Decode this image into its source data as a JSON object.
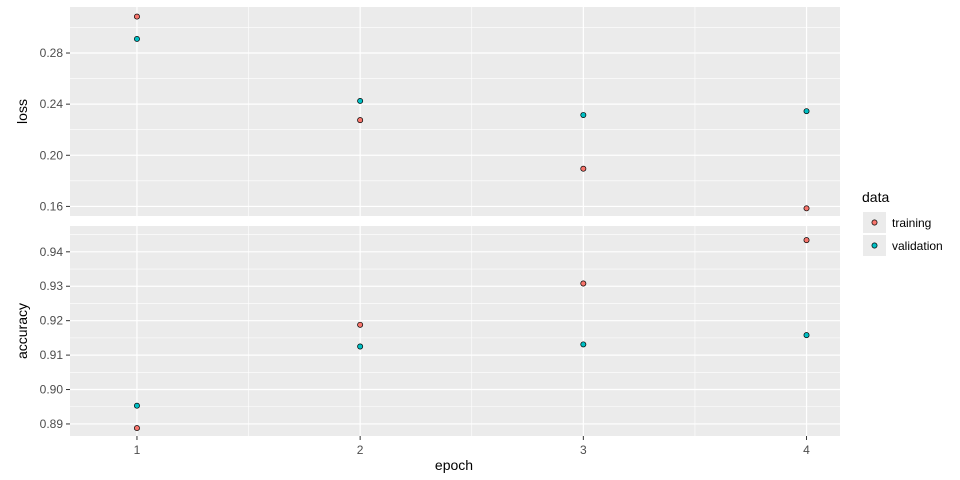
{
  "chart_data": {
    "type": "scatter",
    "xlabel": "epoch",
    "x_ticks": [
      1,
      2,
      3,
      4
    ],
    "xlim": [
      0.7,
      4.15
    ],
    "grid": true,
    "legend": {
      "title": "data",
      "placement": "right",
      "entries": [
        "training",
        "validation"
      ]
    },
    "colors": {
      "training": "#F8766D",
      "validation": "#00BFC4",
      "panel": "#EBEBEB",
      "grid": "#FFFFFF"
    },
    "panels": [
      {
        "ylabel": "loss",
        "ylim": [
          0.1525,
          0.316
        ],
        "y_ticks": [
          0.16,
          0.2,
          0.24,
          0.28
        ],
        "y_tick_labels": [
          "0.16",
          "0.20",
          "0.24",
          "0.28"
        ],
        "series": [
          {
            "name": "training",
            "x": [
              1,
              2,
              3,
              4
            ],
            "y": [
              0.3085,
              0.2275,
              0.1895,
              0.1585
            ]
          },
          {
            "name": "validation",
            "x": [
              1,
              2,
              3,
              4
            ],
            "y": [
              0.291,
              0.2425,
              0.2315,
              0.2345
            ]
          }
        ]
      },
      {
        "ylabel": "accuracy",
        "ylim": [
          0.8865,
          0.9475
        ],
        "y_ticks": [
          0.89,
          0.9,
          0.91,
          0.92,
          0.93,
          0.94
        ],
        "y_tick_labels": [
          "0.89",
          "0.90",
          "0.91",
          "0.92",
          "0.93",
          "0.94"
        ],
        "series": [
          {
            "name": "training",
            "x": [
              1,
              2,
              3,
              4
            ],
            "y": [
              0.8888,
              0.9188,
              0.9308,
              0.9434
            ]
          },
          {
            "name": "validation",
            "x": [
              1,
              2,
              3,
              4
            ],
            "y": [
              0.8953,
              0.9125,
              0.9131,
              0.9158
            ]
          }
        ]
      }
    ]
  }
}
